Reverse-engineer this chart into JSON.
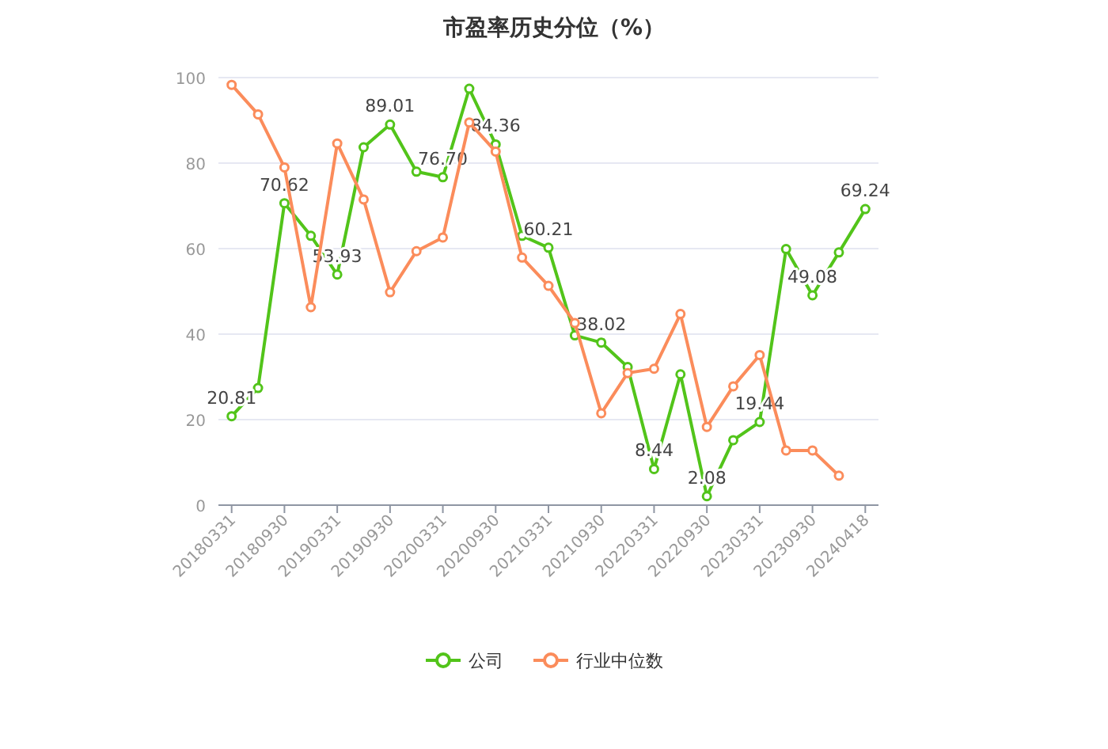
{
  "chart_data": {
    "type": "line",
    "title": "市盈率历史分位（%）",
    "categories": [
      "20180331",
      null,
      "20180930",
      null,
      "20190331",
      null,
      "20190930",
      null,
      "20200331",
      null,
      "20200930",
      null,
      "20210331",
      null,
      "20210930",
      null,
      "20220331",
      null,
      "20220930",
      null,
      "20230331",
      null,
      "20230930",
      null,
      "20240418"
    ],
    "series": [
      {
        "name": "公司",
        "color": "#52c41a",
        "values": [
          20.81,
          27.4,
          70.62,
          63.0,
          53.93,
          83.7,
          89.01,
          78.0,
          76.7,
          97.4,
          84.36,
          63.0,
          60.21,
          39.7,
          38.02,
          32.3,
          8.44,
          30.6,
          2.08,
          15.2,
          19.44,
          59.9,
          49.08,
          59.1,
          69.24
        ],
        "value_labels": [
          "20.81",
          null,
          "70.62",
          null,
          "53.93",
          null,
          "89.01",
          null,
          "76.70",
          null,
          "84.36",
          null,
          "60.21",
          null,
          "38.02",
          null,
          "8.44",
          null,
          "2.08",
          null,
          "19.44",
          null,
          "49.08",
          null,
          "69.24"
        ]
      },
      {
        "name": "行业中位数",
        "color": "#fb8c5b",
        "values": [
          98.3,
          91.4,
          79.0,
          46.3,
          84.6,
          71.5,
          49.8,
          59.4,
          62.6,
          89.5,
          82.7,
          57.9,
          51.3,
          42.6,
          21.5,
          30.9,
          31.9,
          44.7,
          18.3,
          27.8,
          35.1,
          12.8,
          12.8,
          6.9,
          null
        ]
      }
    ],
    "ylim": [
      0,
      100
    ],
    "yticks": [
      0,
      20,
      40,
      60,
      80,
      100
    ],
    "grid": "y",
    "legend": "bottom",
    "marker": "circle"
  }
}
